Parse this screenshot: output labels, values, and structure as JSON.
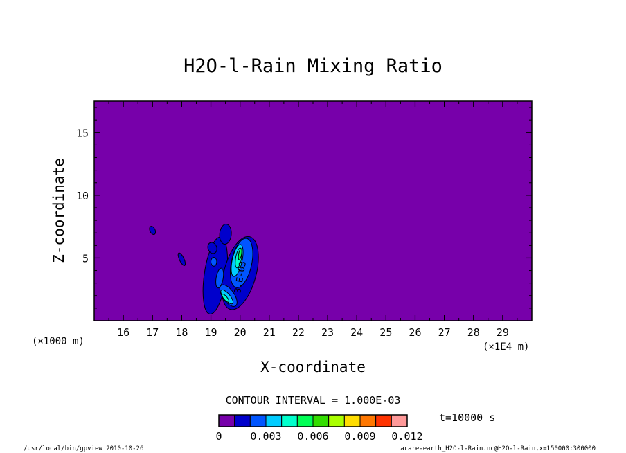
{
  "chart_data": {
    "type": "contour",
    "title": "H2O-l-Rain Mixing Ratio",
    "xlabel": "X-coordinate",
    "ylabel": "Z-coordinate",
    "x_unit_left": "(×1000 m)",
    "x_unit_right": "(×1E4 m)",
    "xlim": [
      15.0,
      30.0
    ],
    "ylim": [
      0.0,
      17.5
    ],
    "x_ticks": [
      16,
      17,
      18,
      19,
      20,
      21,
      22,
      23,
      24,
      25,
      26,
      27,
      28,
      29
    ],
    "y_ticks": [
      5,
      10,
      15
    ],
    "contour_interval_text": "CONTOUR INTERVAL = 1.000E-03",
    "time_text": "t=10000 s",
    "contour_label": "3.E-03",
    "colorbar": {
      "levels": [
        0,
        0.001,
        0.002,
        0.003,
        0.004,
        0.005,
        0.006,
        0.007,
        0.008,
        0.009,
        0.01,
        0.011,
        0.012
      ],
      "colors": [
        "#7700aa",
        "#0000cc",
        "#0055ff",
        "#00ccff",
        "#00ffcc",
        "#00ff55",
        "#33dd00",
        "#aaff00",
        "#ffdd00",
        "#ff7700",
        "#ff3300",
        "#ff9999"
      ],
      "tick_labels": [
        "0",
        "0.003",
        "0.006",
        "0.009",
        "0.012"
      ],
      "tick_values": [
        0,
        0.003,
        0.006,
        0.009,
        0.012
      ]
    },
    "background_color": "#7700aa",
    "features": [
      {
        "level": 1,
        "x": 17.0,
        "y": 7.2,
        "rx": 0.09,
        "ry": 0.35,
        "rot": -25
      },
      {
        "level": 1,
        "x": 18.0,
        "y": 4.9,
        "rx": 0.08,
        "ry": 0.55,
        "rot": -25
      },
      {
        "level": 1,
        "x": 19.15,
        "y": 3.6,
        "rx": 0.38,
        "ry": 3.1,
        "rot": 8
      },
      {
        "level": 1,
        "x": 20.0,
        "y": 3.8,
        "rx": 0.55,
        "ry": 3.0,
        "rot": 15
      },
      {
        "level": 1,
        "x": 19.5,
        "y": 6.9,
        "rx": 0.2,
        "ry": 0.8,
        "rot": 5
      },
      {
        "level": 1,
        "x": 19.05,
        "y": 5.8,
        "rx": 0.15,
        "ry": 0.45,
        "rot": -20
      },
      {
        "level": 2,
        "x": 19.3,
        "y": 3.4,
        "rx": 0.12,
        "ry": 0.8,
        "rot": 10
      },
      {
        "level": 2,
        "x": 19.1,
        "y": 4.7,
        "rx": 0.1,
        "ry": 0.35,
        "rot": 0
      },
      {
        "level": 2,
        "x": 20.05,
        "y": 4.6,
        "rx": 0.35,
        "ry": 2.0,
        "rot": 12
      },
      {
        "level": 2,
        "x": 19.6,
        "y": 2.0,
        "rx": 0.2,
        "ry": 1.0,
        "rot": -35
      },
      {
        "level": 3,
        "x": 19.9,
        "y": 4.8,
        "rx": 0.17,
        "ry": 1.3,
        "rot": 12
      },
      {
        "level": 3,
        "x": 19.55,
        "y": 1.9,
        "rx": 0.11,
        "ry": 0.7,
        "rot": -40
      },
      {
        "level": 4,
        "x": 19.95,
        "y": 5.0,
        "rx": 0.1,
        "ry": 0.8,
        "rot": 10
      },
      {
        "level": 4,
        "x": 19.5,
        "y": 1.8,
        "rx": 0.06,
        "ry": 0.4,
        "rot": -40
      },
      {
        "level": 5,
        "x": 20.0,
        "y": 5.3,
        "rx": 0.05,
        "ry": 0.45,
        "rot": 10
      }
    ]
  },
  "footer": {
    "left": "/usr/local/bin/gpview  2010-10-26",
    "right": "arare-earth_H2O-l-Rain.nc@H2O-l-Rain,x=150000:300000"
  }
}
